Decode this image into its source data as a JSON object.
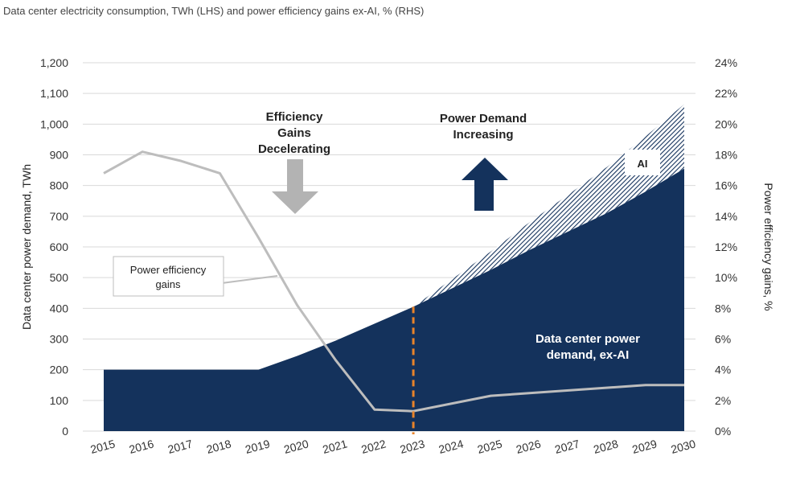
{
  "chart_data": {
    "type": "area",
    "title": "Data center electricity consumption, TWh (LHS) and power efficiency gains ex-AI, % (RHS)",
    "ylabel": "Data center power demand, TWh",
    "y2label": "Power efficiency gains, %",
    "ylim": [
      0,
      1200
    ],
    "y2lim": [
      0,
      24
    ],
    "y_ticks": [
      "0",
      "100",
      "200",
      "300",
      "400",
      "500",
      "600",
      "700",
      "800",
      "900",
      "1,000",
      "1,100",
      "1,200"
    ],
    "y2_ticks": [
      "0%",
      "2%",
      "4%",
      "6%",
      "8%",
      "10%",
      "12%",
      "14%",
      "16%",
      "18%",
      "20%",
      "22%",
      "24%"
    ],
    "categories": [
      "2015",
      "2016",
      "2017",
      "2018",
      "2019",
      "2020",
      "2021",
      "2022",
      "2023",
      "2024",
      "2025",
      "2026",
      "2027",
      "2028",
      "2029",
      "2030"
    ],
    "series": [
      {
        "name": "Data center power demand, ex-AI",
        "axis": "left",
        "values": [
          200,
          200,
          200,
          200,
          200,
          245,
          295,
          350,
          405,
          465,
          525,
          590,
          650,
          710,
          780,
          855
        ],
        "color": "#14325c"
      },
      {
        "name": "AI",
        "axis": "left",
        "stacked": true,
        "values": [
          0,
          0,
          0,
          0,
          0,
          0,
          0,
          0,
          0,
          30,
          60,
          90,
          120,
          150,
          180,
          210
        ],
        "color": "#14325c",
        "pattern": "hatched"
      },
      {
        "name": "Power efficiency gains",
        "axis": "right",
        "values": [
          16.8,
          18.2,
          17.6,
          16.8,
          12.6,
          8.2,
          4.6,
          1.4,
          1.3,
          null,
          2.3,
          null,
          null,
          null,
          3.0,
          3.0
        ],
        "color": "#bdbdbd"
      }
    ],
    "marker_year": "2023",
    "marker_color": "#e8832a",
    "annotations": {
      "efficiency": [
        "Efficiency",
        "Gains",
        "Decelerating"
      ],
      "demand": [
        "Power Demand",
        "Increasing"
      ],
      "ai_label": "AI",
      "exai_label": [
        "Data center power",
        "demand, ex-AI"
      ],
      "efficiency_legend": [
        "Power  efficiency",
        "gains"
      ]
    },
    "grid": true
  }
}
